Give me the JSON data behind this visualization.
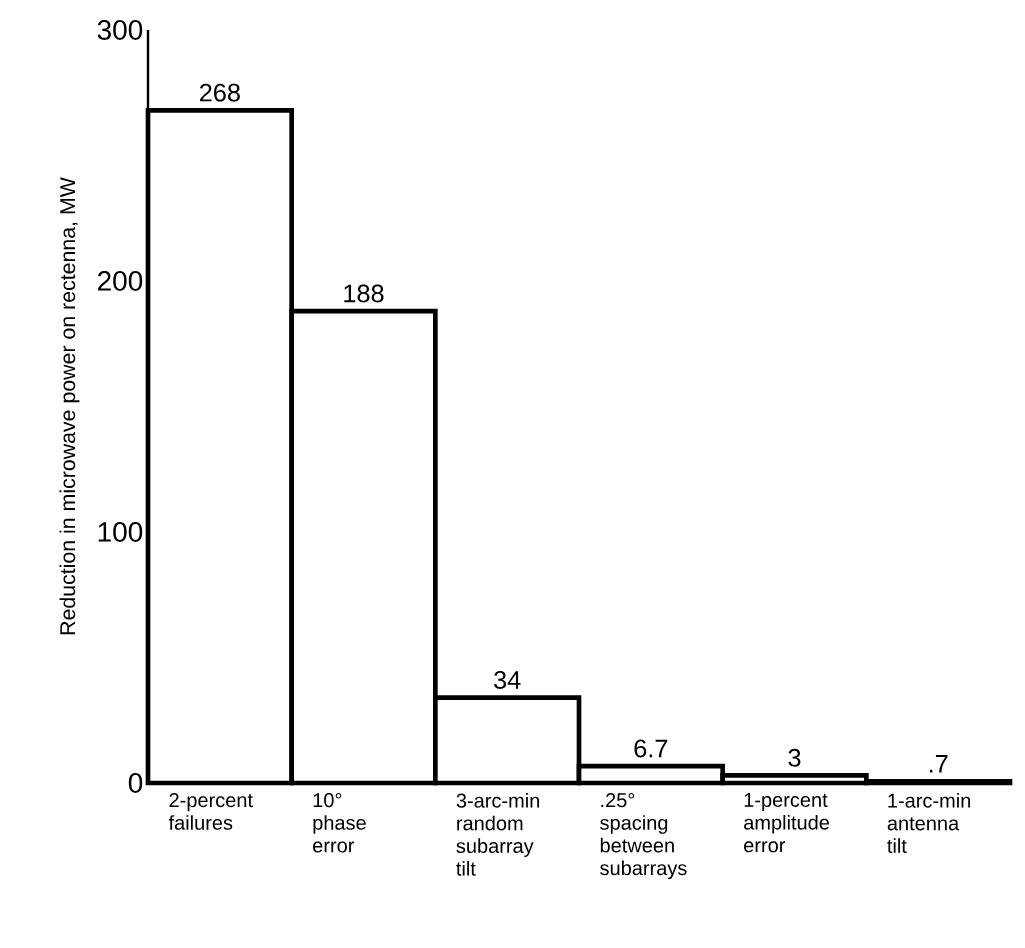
{
  "chart_data": {
    "type": "bar",
    "ylabel": "Reduction in microwave power on rectenna, MW",
    "categories": [
      "2-percent failures",
      "10° phase error",
      "3-arc-min random subarray tilt",
      ".25° spacing between subarrays",
      "1-percent amplitude error",
      "1-arc-min antenna tilt"
    ],
    "values": [
      268,
      188,
      34,
      6.7,
      3,
      0.7
    ],
    "value_labels": [
      "268",
      "188",
      "34",
      "6.7",
      "3",
      ".7"
    ],
    "color": "#ffffff",
    "ylim": [
      0,
      300
    ],
    "yticks": [
      0,
      100,
      200,
      300
    ]
  }
}
